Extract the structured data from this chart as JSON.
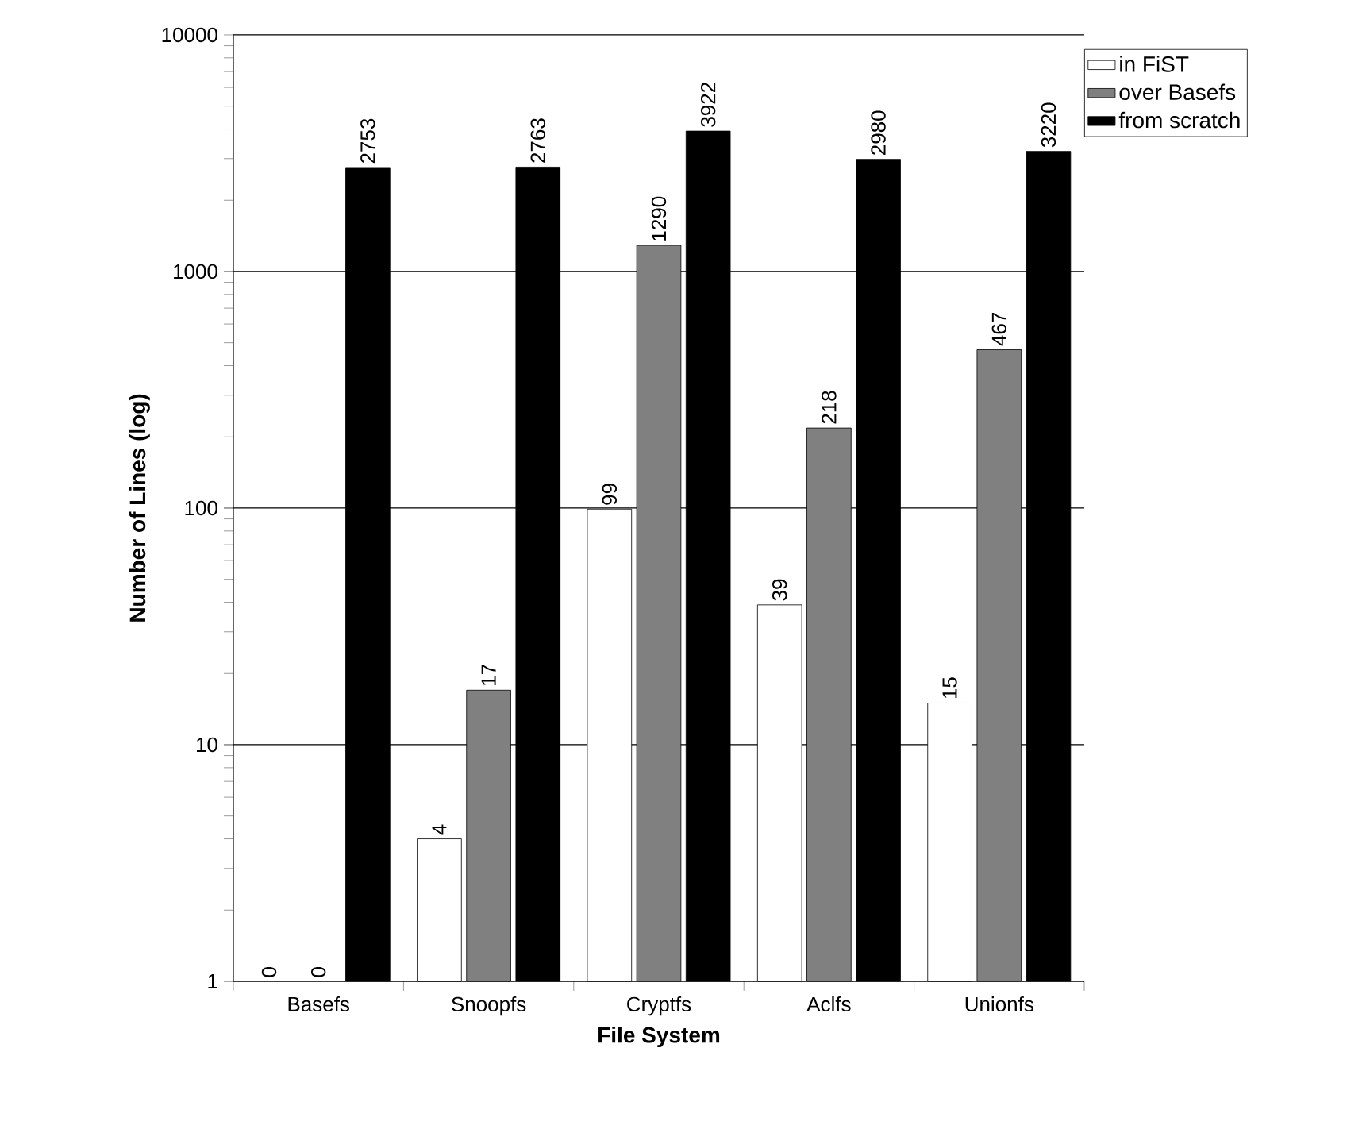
{
  "chart_data": {
    "type": "bar",
    "xlabel": "File System",
    "ylabel": "Number of Lines (log)",
    "categories": [
      "Basefs",
      "Snoopfs",
      "Cryptfs",
      "Aclfs",
      "Unionfs"
    ],
    "series": [
      {
        "name": "in FiST",
        "color": "#ffffff",
        "values": [
          null,
          4,
          99,
          39,
          15
        ],
        "value_labels": [
          "0",
          "4",
          "99",
          "39",
          "15"
        ]
      },
      {
        "name": "over Basefs",
        "color": "#808080",
        "values": [
          null,
          17,
          1290,
          218,
          467
        ],
        "value_labels": [
          "0",
          "17",
          "1290",
          "218",
          "467"
        ]
      },
      {
        "name": "from scratch",
        "color": "#000000",
        "values": [
          2753,
          2763,
          3922,
          2980,
          3220
        ],
        "value_labels": [
          "2753",
          "2763",
          "3922",
          "2980",
          "3220"
        ]
      }
    ],
    "log": "y",
    "ylim": [
      1,
      10000
    ],
    "yticks": [
      1,
      10,
      100,
      1000,
      10000
    ],
    "grid": "y",
    "legend": "top right"
  }
}
